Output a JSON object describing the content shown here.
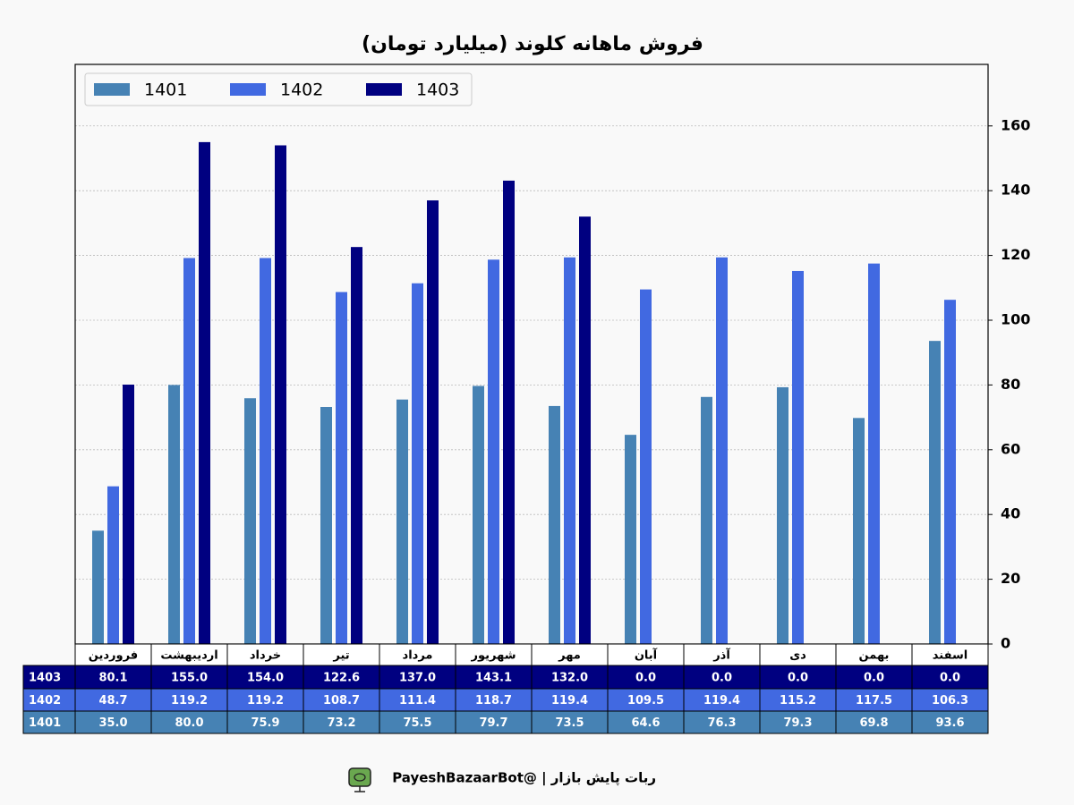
{
  "chart_data": {
    "type": "bar",
    "title": "فروش ماهانه کلوند (میلیارد تومان)",
    "categories": [
      "فروردین",
      "اردیبهشت",
      "خرداد",
      "تیر",
      "مرداد",
      "شهریور",
      "مهر",
      "آبان",
      "آذر",
      "دی",
      "بهمن",
      "اسفند"
    ],
    "series": [
      {
        "name": "1401",
        "color": "#4682b4",
        "values": [
          35.0,
          80.0,
          75.9,
          73.2,
          75.5,
          79.7,
          73.5,
          64.6,
          76.3,
          79.3,
          69.8,
          93.6
        ],
        "value_labels": [
          "35.0",
          "80.0",
          "75.9",
          "73.2",
          "75.5",
          "79.7",
          "73.5",
          "64.6",
          "76.3",
          "79.3",
          "69.8",
          "93.6"
        ]
      },
      {
        "name": "1402",
        "color": "#4169e1",
        "values": [
          48.7,
          119.2,
          119.2,
          108.7,
          111.4,
          118.7,
          119.4,
          109.5,
          119.4,
          115.2,
          117.5,
          106.3
        ],
        "value_labels": [
          "48.7",
          "119.2",
          "119.2",
          "108.7",
          "111.4",
          "118.7",
          "119.4",
          "109.5",
          "119.4",
          "115.2",
          "117.5",
          "106.3"
        ]
      },
      {
        "name": "1403",
        "color": "#000080",
        "values": [
          80.1,
          155.0,
          154.0,
          122.6,
          137.0,
          143.1,
          132.0,
          0.0,
          0.0,
          0.0,
          0.0,
          0.0
        ],
        "value_labels": [
          "80.1",
          "155.0",
          "154.0",
          "122.6",
          "137.0",
          "143.1",
          "132.0",
          "0.0",
          "0.0",
          "0.0",
          "0.0",
          "0.0"
        ]
      }
    ],
    "ylim": [
      0,
      179
    ],
    "yticks": [
      0,
      20,
      40,
      60,
      80,
      100,
      120,
      140,
      160
    ],
    "grid": true,
    "legend": "upper left"
  },
  "footer": "ربات پایش بازار | @PayeshBazaarBot"
}
